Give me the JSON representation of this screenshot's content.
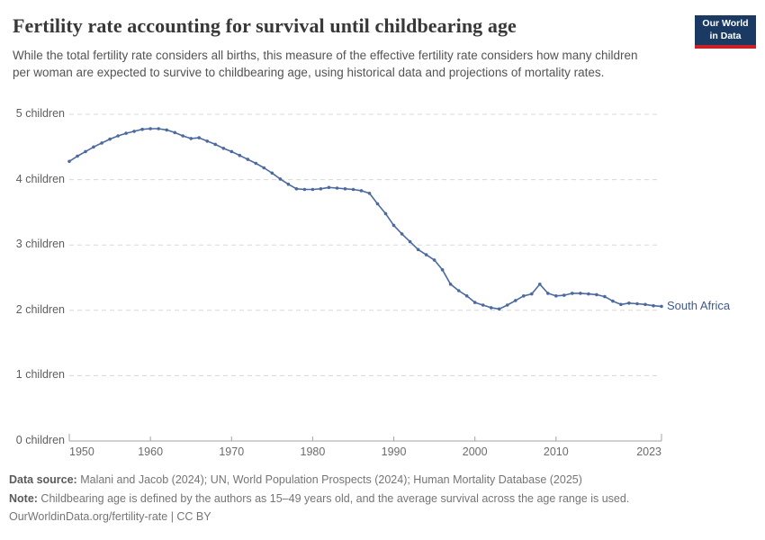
{
  "header": {
    "title": "Fertility rate accounting for survival until childbearing age",
    "subtitle": "While the total fertility rate considers all births, this measure of the effective fertility rate considers how many children per woman are expected to survive to childbearing age, using historical data and projections of mortality rates.",
    "logo": {
      "line1": "Our World",
      "line2": "in Data"
    }
  },
  "chart_data": {
    "type": "line",
    "title": "Fertility rate accounting for survival until childbearing age",
    "xlabel": "",
    "ylabel": "children",
    "xlim": [
      1950,
      2023
    ],
    "ylim": [
      0,
      5
    ],
    "grid": "horizontal-dashed",
    "x_ticks": {
      "years": [
        1950,
        1960,
        1970,
        1980,
        1990,
        2000,
        2010,
        2023
      ],
      "labels": [
        "1950",
        "1960",
        "1970",
        "1980",
        "1990",
        "2000",
        "2010",
        "2023"
      ]
    },
    "y_ticks": {
      "values": [
        0,
        1,
        2,
        3,
        4,
        5
      ],
      "labels": [
        "0 children",
        "1 children",
        "2 children",
        "3 children",
        "4 children",
        "5 children"
      ]
    },
    "series": [
      {
        "name": "South Africa",
        "color": "#4c6a9f",
        "x": [
          1950,
          1951,
          1952,
          1953,
          1954,
          1955,
          1956,
          1957,
          1958,
          1959,
          1960,
          1961,
          1962,
          1963,
          1964,
          1965,
          1966,
          1967,
          1968,
          1969,
          1970,
          1971,
          1972,
          1973,
          1974,
          1975,
          1976,
          1977,
          1978,
          1979,
          1980,
          1981,
          1982,
          1983,
          1984,
          1985,
          1986,
          1987,
          1988,
          1989,
          1990,
          1991,
          1992,
          1993,
          1994,
          1995,
          1996,
          1997,
          1998,
          1999,
          2000,
          2001,
          2002,
          2003,
          2004,
          2005,
          2006,
          2007,
          2008,
          2009,
          2010,
          2011,
          2012,
          2013,
          2014,
          2015,
          2016,
          2017,
          2018,
          2019,
          2020,
          2021,
          2022,
          2023
        ],
        "values": [
          4.28,
          4.36,
          4.43,
          4.5,
          4.56,
          4.62,
          4.67,
          4.71,
          4.74,
          4.77,
          4.78,
          4.78,
          4.76,
          4.72,
          4.67,
          4.63,
          4.64,
          4.59,
          4.54,
          4.48,
          4.43,
          4.37,
          4.31,
          4.25,
          4.18,
          4.1,
          4.01,
          3.93,
          3.86,
          3.85,
          3.85,
          3.86,
          3.88,
          3.87,
          3.86,
          3.85,
          3.83,
          3.79,
          3.63,
          3.48,
          3.3,
          3.17,
          3.05,
          2.93,
          2.85,
          2.77,
          2.62,
          2.4,
          2.3,
          2.22,
          2.12,
          2.08,
          2.04,
          2.02,
          2.08,
          2.15,
          2.22,
          2.25,
          2.4,
          2.26,
          2.22,
          2.23,
          2.26,
          2.26,
          2.25,
          2.24,
          2.21,
          2.14,
          2.09,
          2.11,
          2.1,
          2.09,
          2.07,
          2.06
        ]
      }
    ],
    "entity_label": "South Africa"
  },
  "footer": {
    "datasource_label": "Data source:",
    "datasource_text": " Malani and Jacob (2024); UN, World Population Prospects (2024); Human Mortality Database (2025)",
    "note_label": "Note:",
    "note_text": " Childbearing age is defined by the authors as 15–49 years old, and the average survival across the age range is used.",
    "license": "OurWorldinData.org/fertility-rate | CC BY"
  },
  "colors": {
    "accent": "#4c6a9f",
    "logo_background": "#1a3a64",
    "logo_stripe": "#cb2026",
    "gridline": "#d8d8d8",
    "axis": "#a3a3a3"
  }
}
